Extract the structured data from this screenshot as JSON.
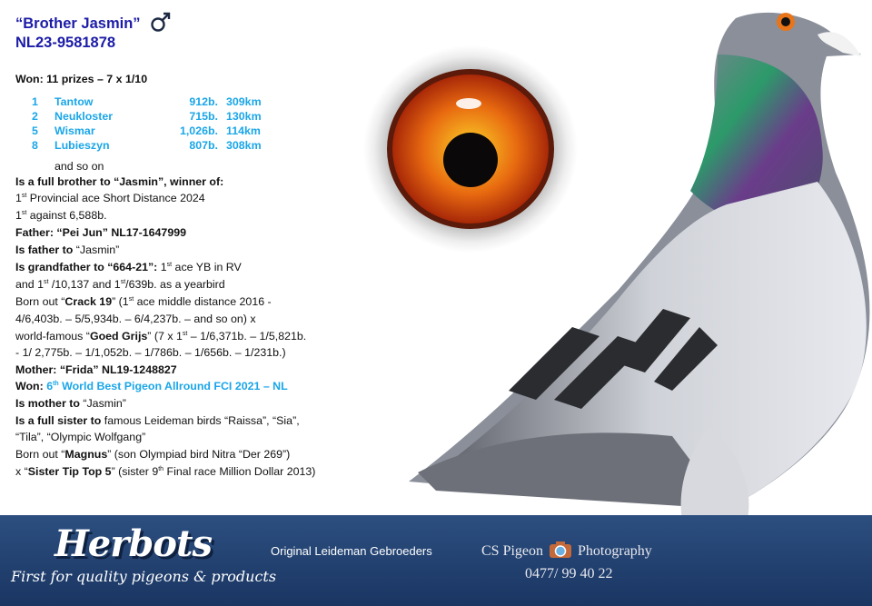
{
  "header": {
    "name": "“Brother Jasmin”",
    "sex_icon": "male-symbol-icon",
    "ring": "NL23-9581878"
  },
  "won_heading": "Won: 11 prizes – 7 x 1/10",
  "results": [
    {
      "place": "1",
      "race": "Tantow",
      "birds": "912b.",
      "distance": "309km"
    },
    {
      "place": "2",
      "race": "Neukloster",
      "birds": "715b.",
      "distance": "130km"
    },
    {
      "place": "5",
      "race": "Wismar",
      "birds": "1,026b.",
      "distance": "114km"
    },
    {
      "place": "8",
      "race": "Lubieszyn",
      "birds": "807b.",
      "distance": "308km"
    }
  ],
  "and_so_on": "and so on",
  "brother_heading": "Is a full brother to “Jasmin”, winner of:",
  "brother_lines": {
    "l1_sup": "st",
    "l1": " Provincial ace Short Distance 2024",
    "l2_sup": "st",
    "l2": " against 6,588b.",
    "num": "1"
  },
  "father": {
    "heading": "Father: “Pei Jun” NL17-1647999",
    "l1_bold": "Is father to",
    "l1": " “Jasmin”",
    "l2_bold": "Is grandfather to “664-21”:",
    "l2": " 1",
    "l2_sup": "st",
    "l2_end": " ace YB in RV",
    "l3a": "and 1",
    "l3_sup1": "st",
    "l3b": " /10,137 and 1",
    "l3_sup2": "st",
    "l3c": "/639b. as a yearbird",
    "l4a": "Born out “",
    "l4_bold": "Crack 19",
    "l4b": "” (1",
    "l4_sup": "st",
    "l4c": " ace middle distance 2016 -",
    "l5": "4/6,403b. – 5/5,934b. – 6/4,237b. – and so on) x",
    "l6a": "world-famous “",
    "l6_bold": "Goed Grijs",
    "l6b": "” (7 x 1",
    "l6_sup": "st",
    "l6c": " – 1/6,371b. – 1/5,821b.",
    "l7": "- 1/ 2,775b. – 1/1,052b. – 1/786b. – 1/656b.  – 1/231b.)"
  },
  "mother": {
    "heading": "Mother: “Frida” NL19-1248827",
    "won_bold": "Won:",
    "won_num": " 6",
    "won_sup": "th",
    "won_text": " World Best Pigeon Allround FCI 2021 – NL",
    "l1_bold": "Is mother to",
    "l1": " “Jasmin”",
    "l2_bold": "Is a full sister to",
    "l2": " famous Leideman birds “Raissa”, “Sia”,",
    "l3": "“Tila”, “Olympic Wolfgang”",
    "l4a": "Born out “",
    "l4_bold": "Magnus",
    "l4b": "” (son Olympiad bird Nitra “Der 269”)",
    "l5a": "x “",
    "l5_bold": "Sister Tip Top 5",
    "l5b": "” (sister 9",
    "l5_sup": "th",
    "l5c": " Final race Million Dollar 2013)"
  },
  "banner": {
    "brand": "Herbots",
    "tagline": "First for quality pigeons & products",
    "breeder": "Original Leideman Gebroeders",
    "photographer_a": "CS Pigeon",
    "photographer_b": "Photography",
    "camera_icon": "camera-icon",
    "phone": "0477/ 99 40 22"
  },
  "colors": {
    "title_blue": "#1c1ca8",
    "heading_red": "#e0141a",
    "results_cyan": "#1aa6e8",
    "banner_navy": "#234475"
  }
}
